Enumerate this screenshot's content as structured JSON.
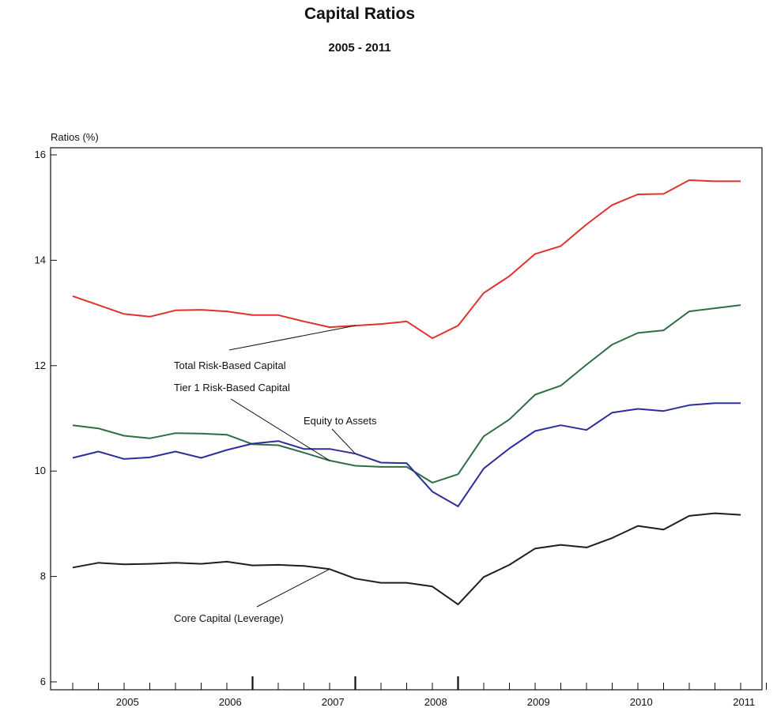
{
  "chart_data": {
    "type": "line",
    "title": "Capital Ratios",
    "subtitle": "2005 - 2011",
    "ylabel": "Ratios (%)",
    "xlabel": "",
    "ylim": [
      6,
      16
    ],
    "yticks": [
      6,
      8,
      10,
      12,
      14,
      16
    ],
    "year_labels": [
      "2005",
      "2006",
      "2007",
      "2008",
      "2009",
      "2010",
      "2011"
    ],
    "x": [
      "2004Q4",
      "2005Q1",
      "2005Q2",
      "2005Q3",
      "2005Q4",
      "2006Q1",
      "2006Q2",
      "2006Q3",
      "2006Q4",
      "2007Q1",
      "2007Q2",
      "2007Q3",
      "2007Q4",
      "2008Q1",
      "2008Q2",
      "2008Q3",
      "2008Q4",
      "2009Q1",
      "2009Q2",
      "2009Q3",
      "2009Q4",
      "2010Q1",
      "2010Q2",
      "2010Q3",
      "2010Q4",
      "2011Q1",
      "2011Q2"
    ],
    "grid": false,
    "series": [
      {
        "name": "Total Risk-Based Capital",
        "color": "#e0322b",
        "values": [
          13.32,
          13.15,
          12.98,
          12.93,
          13.05,
          13.06,
          13.03,
          12.96,
          12.96,
          12.84,
          12.73,
          12.76,
          12.79,
          12.84,
          12.52,
          12.76,
          13.38,
          13.7,
          14.12,
          14.27,
          14.68,
          15.05,
          15.25,
          15.26,
          15.52,
          15.5,
          15.5
        ]
      },
      {
        "name": "Tier 1 Risk-Based Capital",
        "color": "#2f6e45",
        "values": [
          10.87,
          10.81,
          10.67,
          10.62,
          10.72,
          10.71,
          10.69,
          10.51,
          10.49,
          10.35,
          10.2,
          10.1,
          10.08,
          10.08,
          9.78,
          9.94,
          10.66,
          10.98,
          11.45,
          11.62,
          12.02,
          12.4,
          12.62,
          12.67,
          13.03,
          13.09,
          13.15
        ]
      },
      {
        "name": "Equity to Assets",
        "color": "#2e2e9a",
        "values": [
          10.25,
          10.37,
          10.23,
          10.26,
          10.37,
          10.25,
          10.4,
          10.52,
          10.57,
          10.42,
          10.42,
          10.33,
          10.16,
          10.15,
          9.61,
          9.33,
          10.05,
          10.43,
          10.76,
          10.87,
          10.78,
          11.11,
          11.18,
          11.14,
          11.25,
          11.29,
          11.29
        ]
      },
      {
        "name": "Core Capital (Leverage)",
        "color": "#1e1e1e",
        "values": [
          8.17,
          8.26,
          8.23,
          8.24,
          8.26,
          8.24,
          8.28,
          8.21,
          8.22,
          8.2,
          8.14,
          7.96,
          7.88,
          7.88,
          7.81,
          7.47,
          7.99,
          8.22,
          8.53,
          8.6,
          8.55,
          8.73,
          8.96,
          8.89,
          9.15,
          9.2,
          9.17
        ]
      }
    ],
    "annotations": [
      {
        "text": "Total Risk-Based Capital",
        "series": 0,
        "point": 11
      },
      {
        "text": "Tier 1 Risk-Based Capital",
        "series": 1,
        "point": 10
      },
      {
        "text": "Equity to Assets",
        "series": 2,
        "point": 11
      },
      {
        "text": "Core Capital (Leverage)",
        "series": 3,
        "point": 10
      }
    ]
  }
}
